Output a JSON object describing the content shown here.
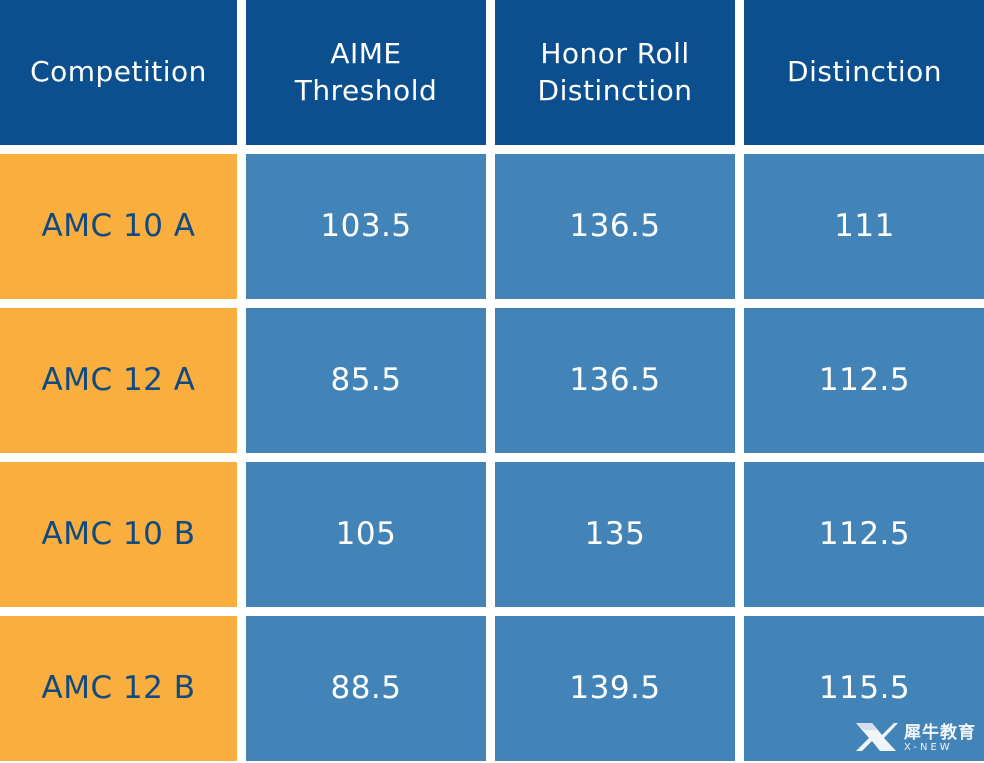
{
  "table": {
    "columns": [
      "Competition",
      "AIME\nThreshold",
      "Honor Roll\nDistinction",
      "Distinction"
    ],
    "rows": [
      {
        "competition": "AMC 10 A",
        "aime": "103.5",
        "honor_roll": "136.5",
        "distinction": "111"
      },
      {
        "competition": "AMC 12 A",
        "aime": "85.5",
        "honor_roll": "136.5",
        "distinction": "112.5"
      },
      {
        "competition": "AMC 10 B",
        "aime": "105",
        "honor_roll": "135",
        "distinction": "112.5"
      },
      {
        "competition": "AMC 12 B",
        "aime": "88.5",
        "honor_roll": "139.5",
        "distinction": "115.5"
      }
    ]
  },
  "watermark": {
    "brand_cn": "犀牛教育",
    "brand_en": "X-NEW"
  },
  "colors": {
    "header_bg": "#0c4f8e",
    "label_bg": "#f9ae3d",
    "value_bg": "#4384b8",
    "label_text": "#114a80"
  }
}
